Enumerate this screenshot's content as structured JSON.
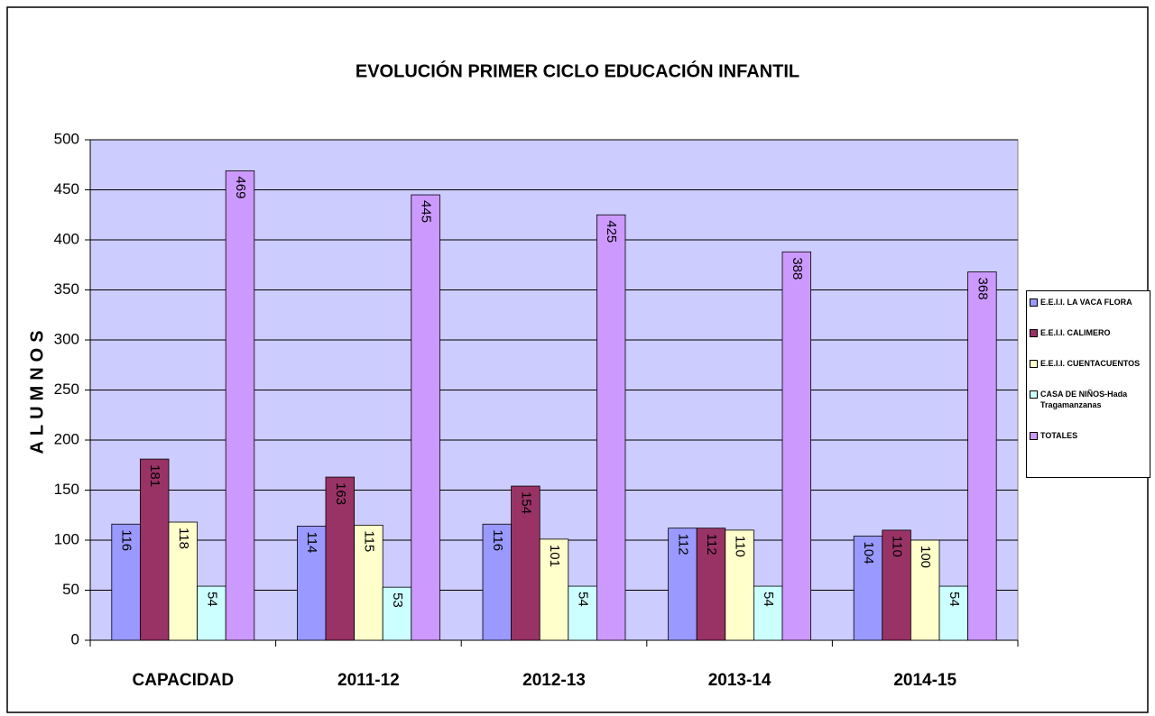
{
  "chart_data": {
    "type": "bar",
    "title": "EVOLUCIÓN PRIMER CICLO EDUCACIÓN INFANTIL",
    "y_label": "ALUMNOS",
    "categories": [
      "CAPACIDAD",
      "2011-12",
      "2012-13",
      "2013-14",
      "2014-15"
    ],
    "series": [
      {
        "name": "E.E.I.I. LA VACA FLORA",
        "color": "#9999ff",
        "values": [
          116,
          114,
          116,
          112,
          104
        ]
      },
      {
        "name": "E.E.I.I. CALIMERO",
        "color": "#993366",
        "values": [
          181,
          163,
          154,
          112,
          110
        ]
      },
      {
        "name": "E.E.I.I. CUENTACUENTOS",
        "color": "#ffffcc",
        "values": [
          118,
          115,
          101,
          110,
          100
        ]
      },
      {
        "name": "CASA DE NIÑOS-Hada Tragamanzanas",
        "color": "#ccffff",
        "values": [
          54,
          53,
          54,
          54,
          54
        ]
      },
      {
        "name": "TOTALES",
        "color": "#cc99ff",
        "values": [
          469,
          445,
          425,
          388,
          368
        ]
      }
    ],
    "ylim": [
      0,
      500
    ],
    "yticks": [
      0,
      50,
      100,
      150,
      200,
      250,
      300,
      350,
      400,
      450,
      500
    ],
    "grid": true,
    "legend": "right"
  }
}
